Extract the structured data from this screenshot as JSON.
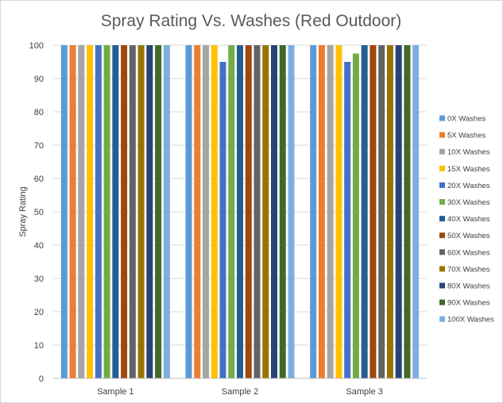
{
  "chart_data": {
    "type": "bar",
    "title": "Spray Rating Vs. Washes (Red Outdoor)",
    "xlabel": "",
    "ylabel": "Spray Rating",
    "ylim": [
      0,
      100
    ],
    "yticks": [
      0,
      10,
      20,
      30,
      40,
      50,
      60,
      70,
      80,
      90,
      100
    ],
    "grid": true,
    "legend_position": "right",
    "categories": [
      "Sample 1",
      "Sample 2",
      "Sample 3"
    ],
    "series": [
      {
        "name": "0X Washes",
        "color": "#5b9bd5",
        "values": [
          100,
          100,
          100
        ]
      },
      {
        "name": "5X Washes",
        "color": "#ed7d31",
        "values": [
          100,
          100,
          100
        ]
      },
      {
        "name": "10X Washes",
        "color": "#a5a5a5",
        "values": [
          100,
          100,
          100
        ]
      },
      {
        "name": "15X Washes",
        "color": "#ffc000",
        "values": [
          100,
          100,
          100
        ]
      },
      {
        "name": "20X Washes",
        "color": "#4472c4",
        "values": [
          100,
          95,
          95
        ]
      },
      {
        "name": "30X Washes",
        "color": "#70ad47",
        "values": [
          100,
          100,
          97.5
        ]
      },
      {
        "name": "40X Washes",
        "color": "#255e91",
        "values": [
          100,
          100,
          100
        ]
      },
      {
        "name": "50X Washes",
        "color": "#9e480e",
        "values": [
          100,
          100,
          100
        ]
      },
      {
        "name": "60X Washes",
        "color": "#636363",
        "values": [
          100,
          100,
          100
        ]
      },
      {
        "name": "70X Washes",
        "color": "#997300",
        "values": [
          100,
          100,
          100
        ]
      },
      {
        "name": "80X Washes",
        "color": "#264478",
        "values": [
          100,
          100,
          100
        ]
      },
      {
        "name": "90X Washes",
        "color": "#43682b",
        "values": [
          100,
          100,
          100
        ]
      },
      {
        "name": "100X Washes",
        "color": "#7cafdd",
        "values": [
          100,
          100,
          100
        ]
      }
    ]
  }
}
